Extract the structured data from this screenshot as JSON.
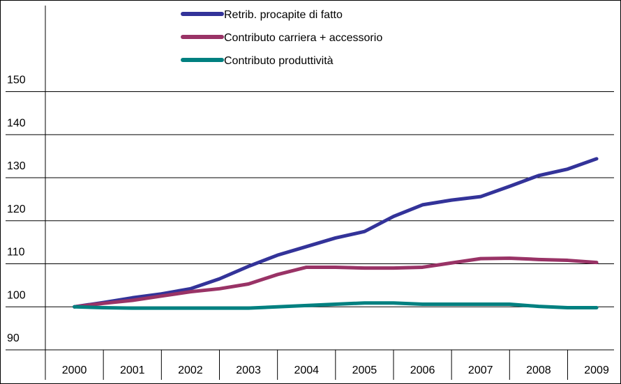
{
  "chart_data": {
    "type": "line",
    "x": [
      2000,
      2000.5,
      2001,
      2001.5,
      2002,
      2002.5,
      2003,
      2003.5,
      2004,
      2004.5,
      2005,
      2005.5,
      2006,
      2006.5,
      2007,
      2007.5,
      2008,
      2008.5,
      2009
    ],
    "series": [
      {
        "name": "Retrib. procapite di fatto",
        "color": "#333399",
        "values": [
          100,
          101,
          102.1,
          103,
          104.2,
          106.5,
          109.4,
          112,
          114,
          116,
          117.5,
          121,
          123.7,
          124.8,
          125.6,
          128,
          130.5,
          132,
          134.4
        ]
      },
      {
        "name": "Contributo carriera + accessorio",
        "color": "#993366",
        "values": [
          100,
          100.8,
          101.5,
          102.5,
          103.5,
          104.2,
          105.3,
          107.5,
          109.2,
          109.2,
          109,
          109,
          109.2,
          110.2,
          111.2,
          111.3,
          111,
          110.8,
          110.3
        ]
      },
      {
        "name": "Contributo produttività",
        "color": "#008080",
        "values": [
          100,
          99.8,
          99.7,
          99.7,
          99.7,
          99.7,
          99.7,
          100,
          100.3,
          100.6,
          100.9,
          100.9,
          100.6,
          100.6,
          100.6,
          100.6,
          100.1,
          99.8,
          99.8
        ]
      }
    ],
    "xlim": [
      1999.5,
      2009.3
    ],
    "xticks": [
      2000,
      2001,
      2002,
      2003,
      2004,
      2005,
      2006,
      2007,
      2008,
      2009
    ],
    "ylim": [
      90,
      170
    ],
    "yticks": [
      90,
      100,
      110,
      120,
      130,
      140,
      150
    ],
    "grid": true,
    "legend": "top"
  }
}
